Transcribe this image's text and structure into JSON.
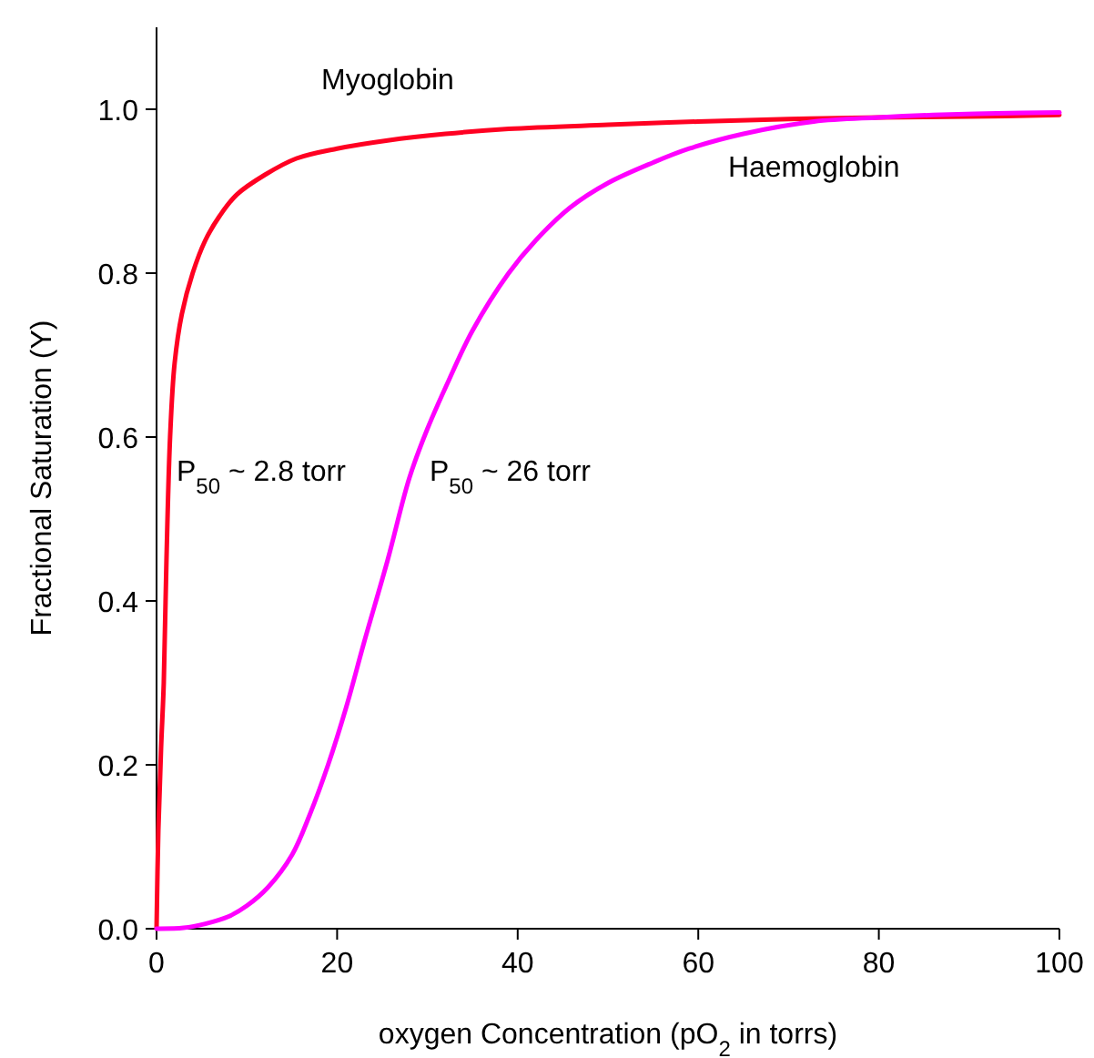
{
  "chart_data": {
    "type": "line",
    "xlabel": "oxygen Concentration (pO$_{2}$ in torrs)",
    "ylabel": "Fractional Saturation (Y)",
    "xlim": [
      0,
      100
    ],
    "ylim": [
      0,
      1.1
    ],
    "xticks": [
      0,
      20,
      40,
      60,
      80,
      100
    ],
    "yticks": [
      {
        "value": 0,
        "label": "0.0"
      },
      0.2,
      0.4,
      0.6,
      0.8,
      {
        "value": 1,
        "label": "1.0"
      }
    ],
    "series": [
      {
        "name": "Myoglobin",
        "color": "#ff0022",
        "x": [
          0,
          0.2,
          0.5,
          0.8,
          1.1,
          1.5,
          2,
          2.8,
          4,
          5.4,
          7,
          8.9,
          12,
          15.5,
          20,
          25.6,
          32,
          39,
          50,
          60,
          70,
          80,
          90,
          100
        ],
        "values": [
          0,
          0.12,
          0.22,
          0.3,
          0.45,
          0.6,
          0.69,
          0.75,
          0.8,
          0.84,
          0.87,
          0.896,
          0.92,
          0.94,
          0.952,
          0.962,
          0.97,
          0.976,
          0.981,
          0.985,
          0.988,
          0.99,
          0.991,
          0.993
        ]
      },
      {
        "name": "Haemoglobin",
        "color": "#ff00ff",
        "x": [
          0,
          3,
          5.4,
          8,
          10,
          12.3,
          15,
          17,
          19,
          21,
          23,
          25.6,
          28,
          30,
          32.4,
          35,
          39,
          42,
          45.8,
          50,
          55,
          59,
          65,
          72.8,
          80,
          86,
          93,
          100
        ],
        "values": [
          0,
          0.001,
          0.006,
          0.015,
          0.028,
          0.05,
          0.09,
          0.14,
          0.2,
          0.27,
          0.35,
          0.45,
          0.55,
          0.61,
          0.67,
          0.73,
          0.8,
          0.84,
          0.88,
          0.91,
          0.935,
          0.952,
          0.97,
          0.985,
          0.99,
          0.993,
          0.995,
          0.996
        ]
      }
    ],
    "annotations": [
      "P$_{50}$ ~ 2.8 torr",
      "P$_{50}$ ~ 26 torr"
    ],
    "legend": false,
    "grid": false,
    "marker": "none",
    "line_style": "solid"
  }
}
